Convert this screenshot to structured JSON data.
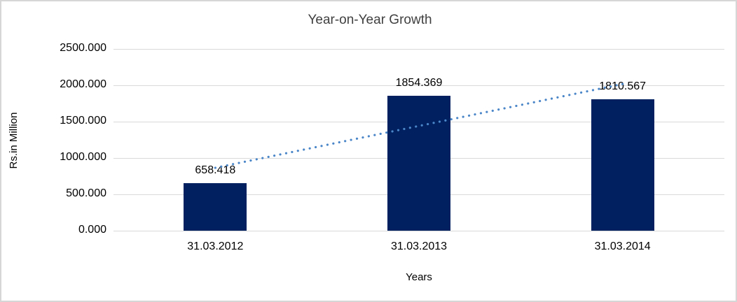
{
  "chart": {
    "title": "Year-on-Year Growth",
    "y_axis_title": "Rs.in Million",
    "x_axis_title": "Years",
    "colors": {
      "bar": "#002060",
      "trendline": "#4a86c8",
      "gridline": "#d9d9d9",
      "frame_border": "#d6d6d6",
      "title_text": "#404040",
      "label_text": "#000000"
    }
  },
  "chart_data": {
    "type": "bar",
    "title": "Year-on-Year Growth",
    "xlabel": "Years",
    "ylabel": "Rs.in Million",
    "categories": [
      "31.03.2012",
      "31.03.2013",
      "31.03.2014"
    ],
    "values": [
      658.418,
      1854.369,
      1810.567
    ],
    "data_labels": [
      "658.418",
      "1854.369",
      "1810.567"
    ],
    "y_ticks": [
      {
        "label": "2500.000",
        "value": 2500
      },
      {
        "label": "2000.000",
        "value": 2000
      },
      {
        "label": "1500.000",
        "value": 1500
      },
      {
        "label": "1000.000",
        "value": 1000
      },
      {
        "label": "500.000",
        "value": 500
      },
      {
        "label": "0.000",
        "value": 0
      }
    ],
    "ylim": [
      0,
      2500
    ],
    "grid": true,
    "legend_position": "none",
    "trendline": {
      "type": "linear",
      "style": "dotted"
    }
  }
}
